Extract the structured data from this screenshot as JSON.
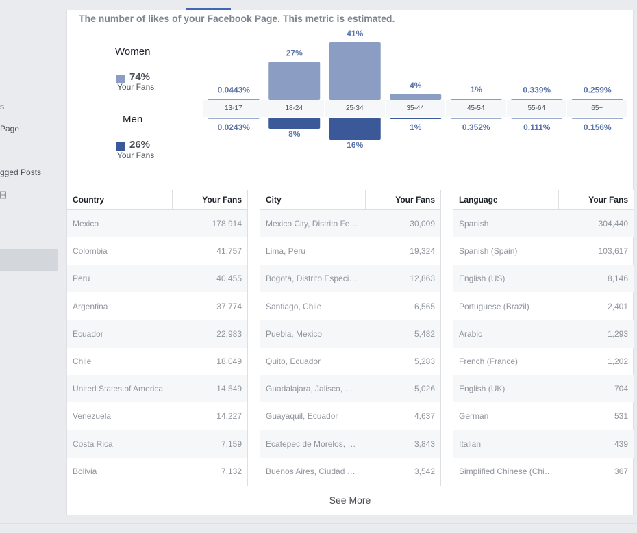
{
  "nav": {
    "items": [
      "s",
      "Page",
      "gged Posts"
    ]
  },
  "description": "The number of likes of your Facebook Page. This metric is estimated.",
  "gender": {
    "women": {
      "label": "Women",
      "pct": "74%",
      "sub": "Your Fans",
      "color": "#8b9dc3"
    },
    "men": {
      "label": "Men",
      "pct": "26%",
      "sub": "Your Fans",
      "color": "#3b5998"
    }
  },
  "chart_data": {
    "type": "bar",
    "categories": [
      "13-17",
      "18-24",
      "25-34",
      "35-44",
      "45-54",
      "55-64",
      "65+"
    ],
    "series": [
      {
        "name": "Women",
        "values": [
          0.0443,
          27,
          41,
          4,
          1,
          0.339,
          0.259
        ],
        "labels": [
          "0.0443%",
          "27%",
          "41%",
          "4%",
          "1%",
          "0.339%",
          "0.259%"
        ],
        "color": "#8b9dc3"
      },
      {
        "name": "Men",
        "values": [
          0.0243,
          8,
          16,
          1,
          0.352,
          0.111,
          0.156
        ],
        "labels": [
          "0.0243%",
          "8%",
          "16%",
          "1%",
          "0.352%",
          "0.111%",
          "0.156%"
        ],
        "color": "#3b5998"
      }
    ],
    "label_color": "#5b74a8"
  },
  "tables": [
    {
      "headers": [
        "Country",
        "Your Fans"
      ],
      "rows": [
        [
          "Mexico",
          "178,914"
        ],
        [
          "Colombia",
          "41,757"
        ],
        [
          "Peru",
          "40,455"
        ],
        [
          "Argentina",
          "37,774"
        ],
        [
          "Ecuador",
          "22,983"
        ],
        [
          "Chile",
          "18,049"
        ],
        [
          "United States of America",
          "14,549"
        ],
        [
          "Venezuela",
          "14,227"
        ],
        [
          "Costa Rica",
          "7,159"
        ],
        [
          "Bolivia",
          "7,132"
        ]
      ]
    },
    {
      "headers": [
        "City",
        "Your Fans"
      ],
      "rows": [
        [
          "Mexico City, Distrito Fe…",
          "30,009"
        ],
        [
          "Lima, Peru",
          "19,324"
        ],
        [
          "Bogotá, Distrito Especi…",
          "12,863"
        ],
        [
          "Santiago, Chile",
          "6,565"
        ],
        [
          "Puebla, Mexico",
          "5,482"
        ],
        [
          "Quito, Ecuador",
          "5,283"
        ],
        [
          "Guadalajara, Jalisco, …",
          "5,026"
        ],
        [
          "Guayaquil, Ecuador",
          "4,637"
        ],
        [
          "Ecatepec de Morelos, …",
          "3,843"
        ],
        [
          "Buenos Aires, Ciudad …",
          "3,542"
        ]
      ]
    },
    {
      "headers": [
        "Language",
        "Your Fans"
      ],
      "rows": [
        [
          "Spanish",
          "304,440"
        ],
        [
          "Spanish (Spain)",
          "103,617"
        ],
        [
          "English (US)",
          "8,146"
        ],
        [
          "Portuguese (Brazil)",
          "2,401"
        ],
        [
          "Arabic",
          "1,293"
        ],
        [
          "French (France)",
          "1,202"
        ],
        [
          "English (UK)",
          "704"
        ],
        [
          "German",
          "531"
        ],
        [
          "Italian",
          "439"
        ],
        [
          "Simplified Chinese (Chi…",
          "367"
        ]
      ]
    }
  ],
  "see_more": "See More"
}
